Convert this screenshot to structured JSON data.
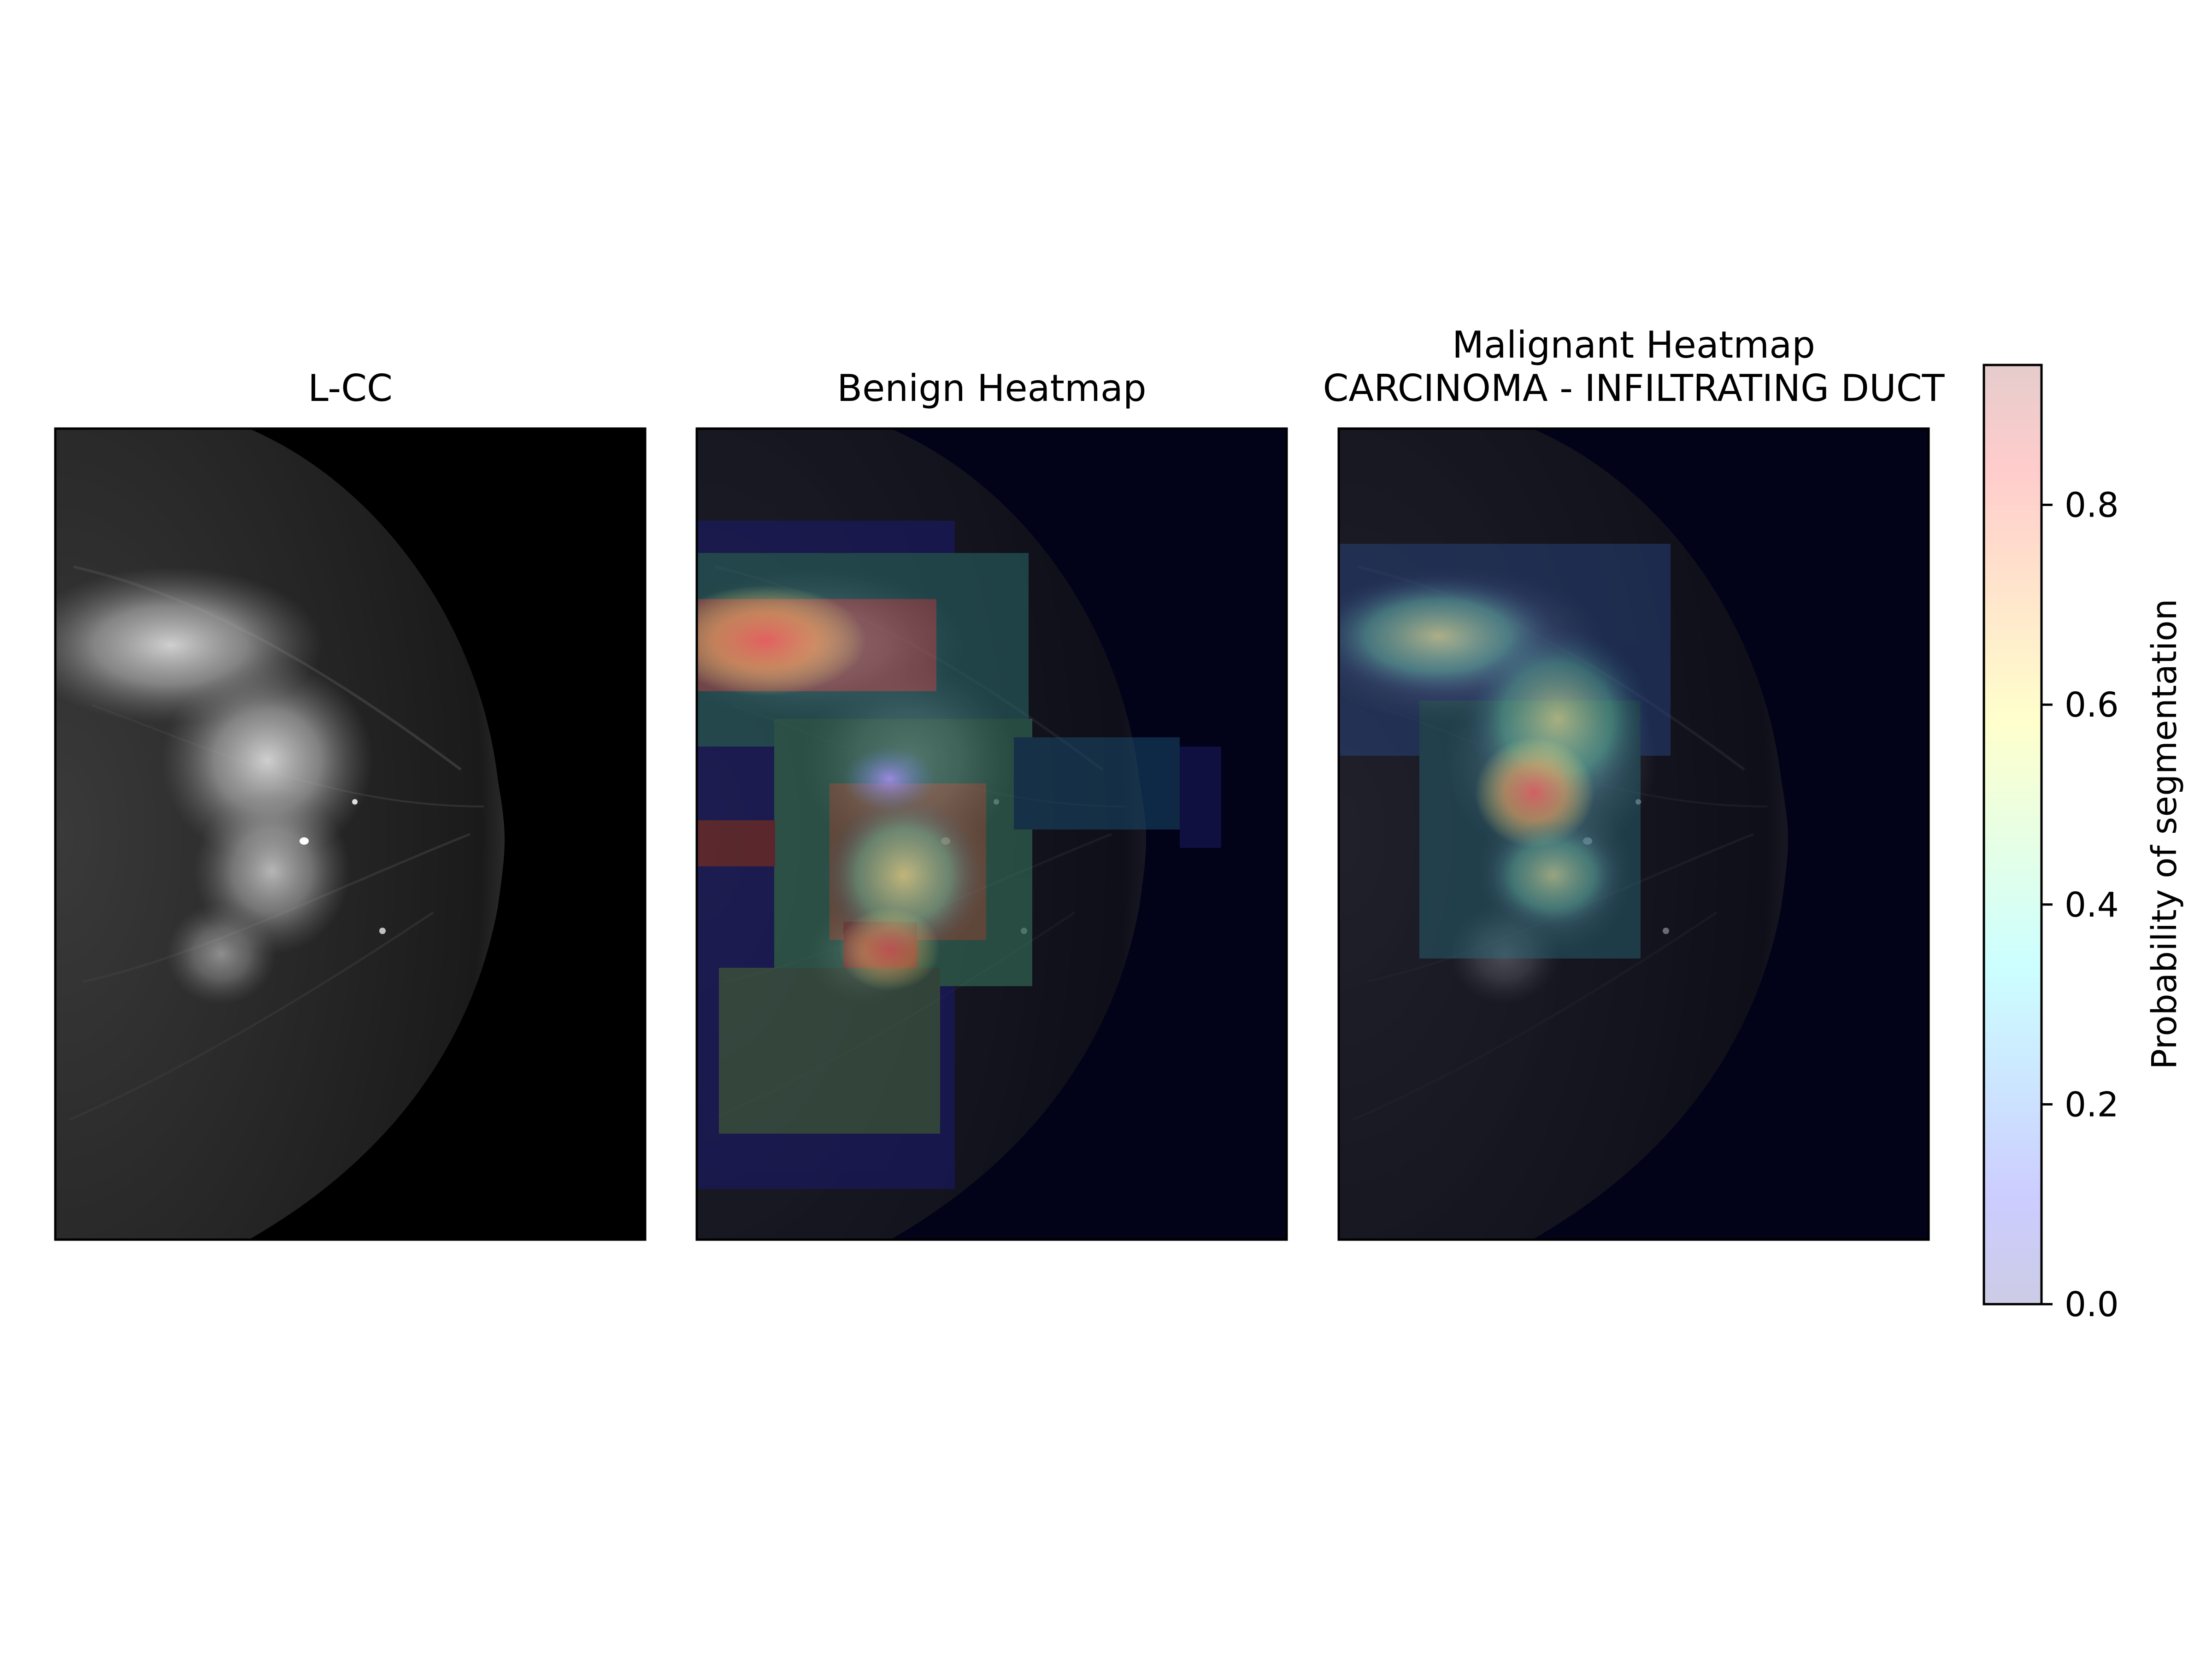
{
  "panels": [
    {
      "title": "L-CC"
    },
    {
      "title": "Benign Heatmap"
    },
    {
      "title_line1": "Malignant Heatmap",
      "title_line2": "CARCINOMA - INFILTRATING DUCT"
    }
  ],
  "colorbar": {
    "label": "Probability of segmentation",
    "ticks": [
      "0.0",
      "0.2",
      "0.4",
      "0.6",
      "0.8"
    ],
    "tick_values": [
      0.0,
      0.2,
      0.4,
      0.6,
      0.8
    ],
    "range": [
      0.0,
      0.94
    ],
    "colormap": "jet",
    "alpha": 0.2
  },
  "colors": {
    "background": "#ffffff",
    "heatmap_base": "#020219",
    "image_base": "#000000"
  }
}
